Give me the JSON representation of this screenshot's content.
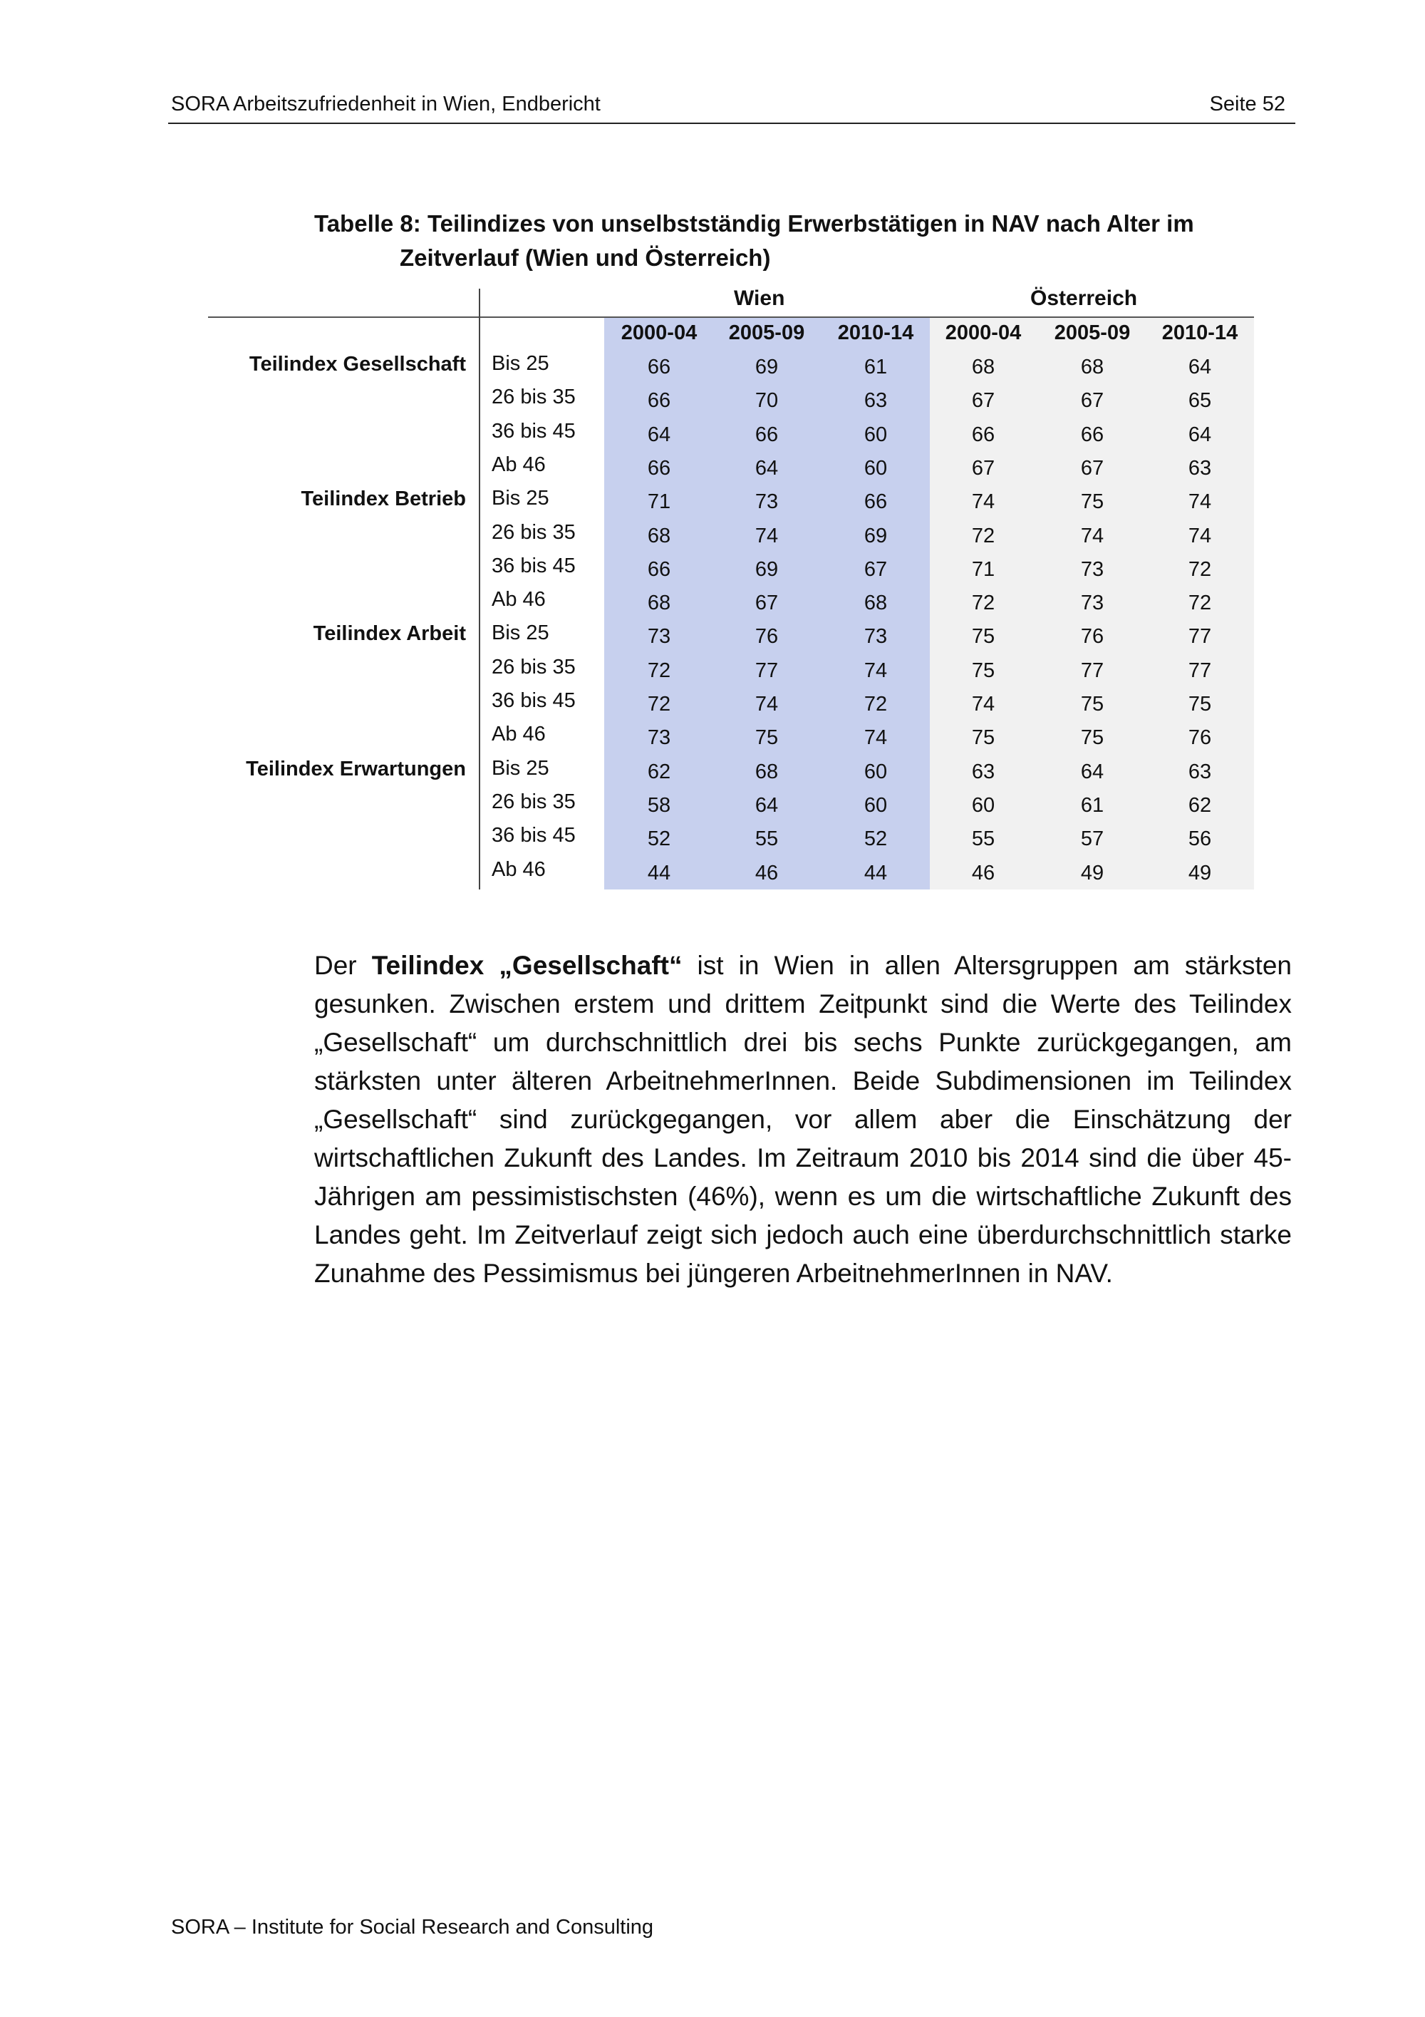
{
  "header": {
    "left": "SORA Arbeitszufriedenheit in Wien, Endbericht",
    "right": "Seite 52"
  },
  "table": {
    "title_line1": "Tabelle 8: Teilindizes von unselbstständig Erwerbstätigen in NAV nach Alter im",
    "title_line2": "Zeitverlauf (Wien und Österreich)",
    "group_headers": [
      "Wien",
      "Österreich"
    ],
    "periods": [
      "2000-04",
      "2005-09",
      "2010-14",
      "2000-04",
      "2005-09",
      "2010-14"
    ],
    "colors": {
      "wien_bg": "#c7d0ee",
      "oesterreich_bg": "#f1f1f1"
    },
    "sections": [
      {
        "label": "Teilindex Gesellschaft",
        "rows": [
          {
            "age": "Bis 25",
            "values": [
              66,
              69,
              61,
              68,
              68,
              64
            ]
          },
          {
            "age": "26 bis 35",
            "values": [
              66,
              70,
              63,
              67,
              67,
              65
            ]
          },
          {
            "age": "36 bis 45",
            "values": [
              64,
              66,
              60,
              66,
              66,
              64
            ]
          },
          {
            "age": "Ab 46",
            "values": [
              66,
              64,
              60,
              67,
              67,
              63
            ]
          }
        ]
      },
      {
        "label": "Teilindex Betrieb",
        "rows": [
          {
            "age": "Bis 25",
            "values": [
              71,
              73,
              66,
              74,
              75,
              74
            ]
          },
          {
            "age": "26 bis 35",
            "values": [
              68,
              74,
              69,
              72,
              74,
              74
            ]
          },
          {
            "age": "36 bis 45",
            "values": [
              66,
              69,
              67,
              71,
              73,
              72
            ]
          },
          {
            "age": "Ab 46",
            "values": [
              68,
              67,
              68,
              72,
              73,
              72
            ]
          }
        ]
      },
      {
        "label": "Teilindex Arbeit",
        "rows": [
          {
            "age": "Bis 25",
            "values": [
              73,
              76,
              73,
              75,
              76,
              77
            ]
          },
          {
            "age": "26 bis 35",
            "values": [
              72,
              77,
              74,
              75,
              77,
              77
            ]
          },
          {
            "age": "36 bis 45",
            "values": [
              72,
              74,
              72,
              74,
              75,
              75
            ]
          },
          {
            "age": "Ab 46",
            "values": [
              73,
              75,
              74,
              75,
              75,
              76
            ]
          }
        ]
      },
      {
        "label": "Teilindex Erwartungen",
        "rows": [
          {
            "age": "Bis 25",
            "values": [
              62,
              68,
              60,
              63,
              64,
              63
            ]
          },
          {
            "age": "26 bis 35",
            "values": [
              58,
              64,
              60,
              60,
              61,
              62
            ]
          },
          {
            "age": "36 bis 45",
            "values": [
              52,
              55,
              52,
              55,
              57,
              56
            ]
          },
          {
            "age": "Ab 46",
            "values": [
              44,
              46,
              44,
              46,
              49,
              49
            ]
          }
        ]
      }
    ]
  },
  "paragraph": {
    "pre": "Der ",
    "bold": "Teilindex „Gesellschaft“",
    "post": " ist in Wien in allen Altersgruppen am stärksten gesunken. Zwischen erstem und drittem Zeitpunkt sind die Werte des Teilin­dex „Gesellschaft“ um durchschnittlich drei bis sechs Punkte zurückgegangen, am stärksten unter älteren ArbeitnehmerInnen. Beide Subdimensionen im Teil­index „Gesellschaft“ sind zurückgegangen, vor allem aber die Einschätzung der wirtschaftlichen Zukunft des Landes. Im Zeitraum 2010 bis 2014 sind die über 45-Jährigen am pessimistischsten (46%), wenn es um die wirtschaftliche Zukunft des Landes geht. Im Zeitverlauf zeigt sich jedoch auch eine über­durchschnittlich starke Zunahme des Pessimismus bei jüngeren ArbeitnehmerInnen in NAV."
  },
  "footer": "SORA – Institute for Social Research and Consulting"
}
